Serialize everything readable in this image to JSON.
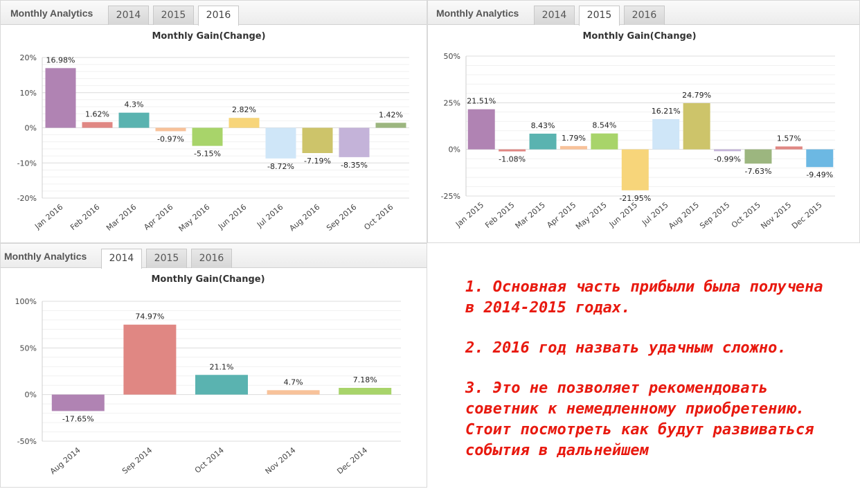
{
  "header": {
    "title": "Monthly Analytics",
    "tabs": [
      "2014",
      "2015",
      "2016"
    ]
  },
  "colors": {
    "accent_text": "#e8190f",
    "grid": "#e6e6e6"
  },
  "notes": [
    "1. Основная часть прибыли была получена\nв 2014-2015 годах.",
    "2. 2016 год назвать удачным сложно.",
    "3. Это не позволяет рекомендовать\nсоветник к немедленному приобретению.\nСтоит посмотреть как будут развиваться\nсобытия в дальнейшем"
  ],
  "chart_data": [
    {
      "type": "bar",
      "active_tab": "2016",
      "title": "Monthly Gain(Change)",
      "categories": [
        "Jan 2016",
        "Feb 2016",
        "Mar 2016",
        "Apr 2016",
        "May 2016",
        "Jun 2016",
        "Jul 2016",
        "Aug 2016",
        "Sep 2016",
        "Oct 2016"
      ],
      "values": [
        16.98,
        1.62,
        4.3,
        -0.97,
        -5.15,
        2.82,
        -8.72,
        -7.19,
        -8.35,
        1.42
      ],
      "labels": [
        "16.98%",
        "1.62%",
        "4.3%",
        "-0.97%",
        "-5.15%",
        "2.82%",
        "-8.72%",
        "-7.19%",
        "-8.35%",
        "1.42%"
      ],
      "bar_colors": [
        "#b083b3",
        "#e08783",
        "#5ab3b0",
        "#f8c29a",
        "#a8d46a",
        "#f7d57a",
        "#cfe6f8",
        "#cdc46a",
        "#c4b3d9",
        "#9cb67f"
      ],
      "ylim": [
        -20,
        20
      ],
      "yticks": [
        -20,
        -10,
        0,
        10,
        20
      ],
      "ytick_labels": [
        "-20%",
        "-10%",
        "0%",
        "10%",
        "20%"
      ],
      "grid": true
    },
    {
      "type": "bar",
      "active_tab": "2015",
      "title": "Monthly Gain(Change)",
      "categories": [
        "Jan 2015",
        "Feb 2015",
        "Mar 2015",
        "Apr 2015",
        "May 2015",
        "Jun 2015",
        "Jul 2015",
        "Aug 2015",
        "Sep 2015",
        "Oct 2015",
        "Nov 2015",
        "Dec 2015"
      ],
      "values": [
        21.51,
        -1.08,
        8.43,
        1.79,
        8.54,
        -21.95,
        16.21,
        24.79,
        -0.99,
        -7.63,
        1.57,
        -9.49
      ],
      "labels": [
        "21.51%",
        "-1.08%",
        "8.43%",
        "1.79%",
        "8.54%",
        "-21.95%",
        "16.21%",
        "24.79%",
        "-0.99%",
        "-7.63%",
        "1.57%",
        "-9.49%"
      ],
      "bar_colors": [
        "#b083b3",
        "#e08783",
        "#5ab3b0",
        "#f8c29a",
        "#a8d46a",
        "#f7d57a",
        "#cfe6f8",
        "#cdc46a",
        "#c4b3d9",
        "#9cb67f",
        "#e08783",
        "#6cb8e3"
      ],
      "ylim": [
        -25,
        50
      ],
      "yticks": [
        -25,
        0,
        25,
        50
      ],
      "ytick_labels": [
        "-25%",
        "0%",
        "25%",
        "50%"
      ],
      "grid": true
    },
    {
      "type": "bar",
      "active_tab": "2014",
      "title": "Monthly Gain(Change)",
      "categories": [
        "Aug 2014",
        "Sep 2014",
        "Oct 2014",
        "Nov 2014",
        "Dec 2014"
      ],
      "values": [
        -17.65,
        74.97,
        21.1,
        4.7,
        7.18
      ],
      "labels": [
        "-17.65%",
        "74.97%",
        "21.1%",
        "4.7%",
        "7.18%"
      ],
      "bar_colors": [
        "#b083b3",
        "#e08783",
        "#5ab3b0",
        "#f8c29a",
        "#a8d46a"
      ],
      "ylim": [
        -50,
        100
      ],
      "yticks": [
        -50,
        0,
        50,
        100
      ],
      "ytick_labels": [
        "-50%",
        "0%",
        "50%",
        "100%"
      ],
      "grid": true
    }
  ]
}
